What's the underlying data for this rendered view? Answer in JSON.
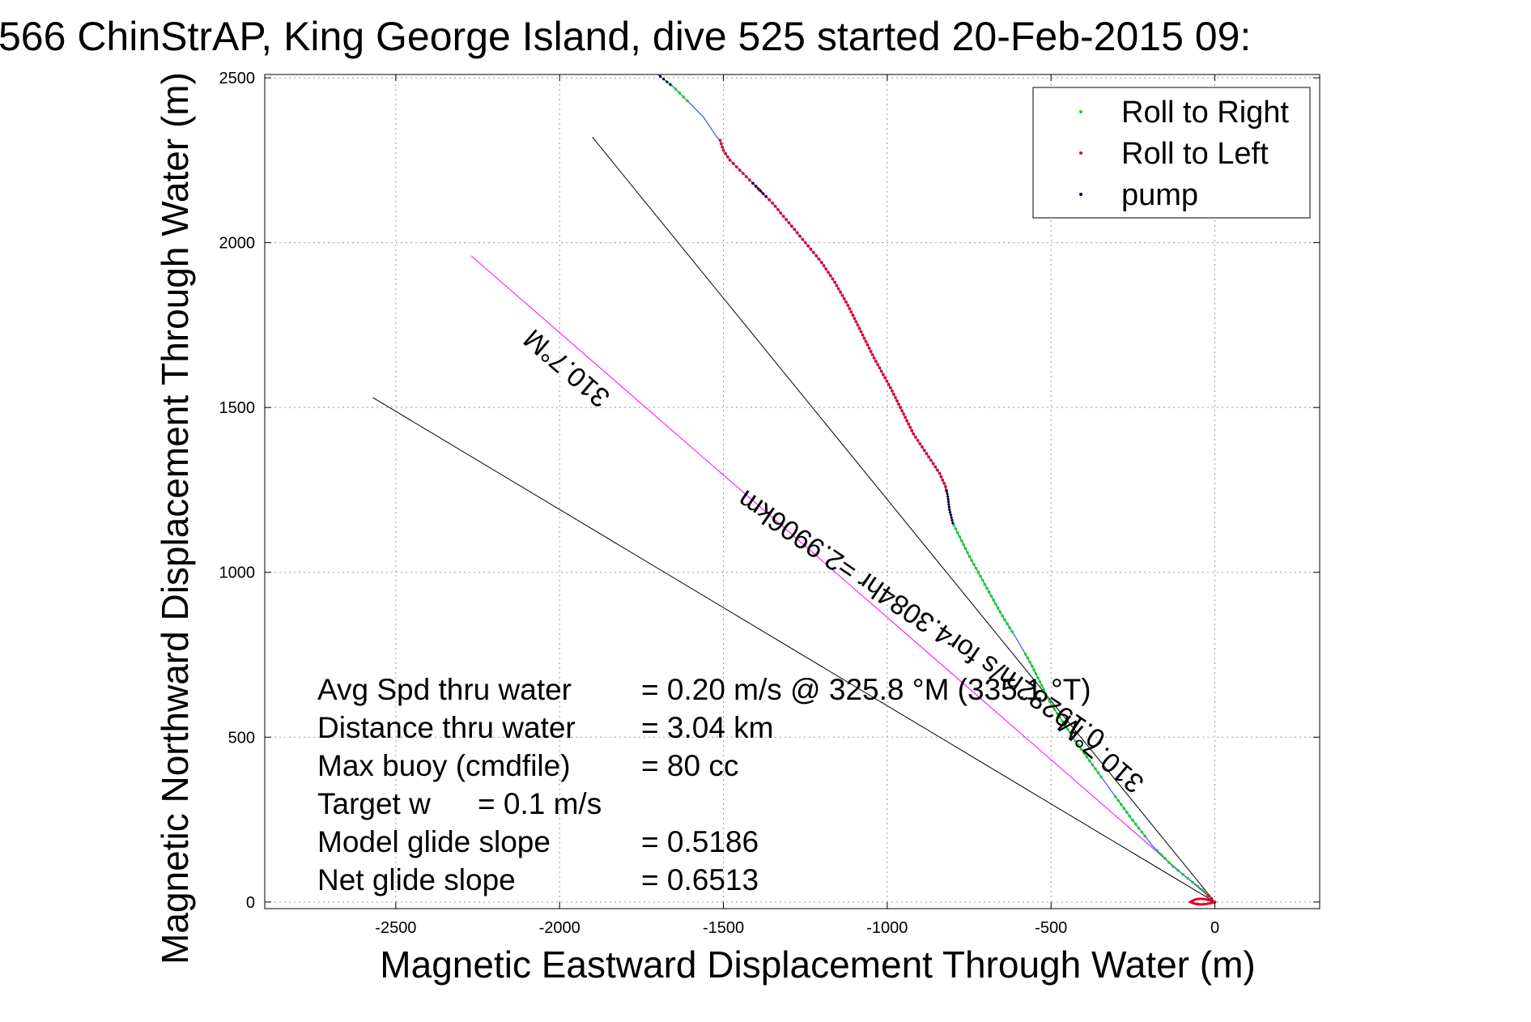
{
  "chart_data": {
    "type": "line",
    "title": "566 ChinStrAP, King George Island, dive 525 started 20-Feb-2015 09:",
    "xlabel": "Magnetic Eastward Displacement Through Water (m)",
    "ylabel": "Magnetic Northward Displacement Through Water (m)",
    "xlim": [
      -2900,
      320
    ],
    "ylim": [
      -20,
      2510
    ],
    "xticks": [
      -2500,
      -2000,
      -1500,
      -1000,
      -500,
      0
    ],
    "yticks": [
      0,
      500,
      1000,
      1500,
      2000,
      2500
    ],
    "grid": true,
    "legend": {
      "placement": "top-right",
      "entries": [
        {
          "label": "Roll to Right",
          "color": "#00dd00"
        },
        {
          "label": "Roll to Left",
          "color": "#e0002a"
        },
        {
          "label": "pump",
          "color": "#000033"
        }
      ]
    },
    "track": {
      "color": "#3355ff",
      "x": [
        0,
        -30,
        -80,
        -130,
        -190,
        -260,
        -340,
        -420,
        -500,
        -560,
        -600,
        -650,
        -700,
        -750,
        -800,
        -810,
        -815,
        -822,
        -840,
        -880,
        -920,
        -950,
        -990,
        -1040,
        -1080,
        -1120,
        -1160,
        -1200,
        -1250,
        -1300,
        -1350,
        -1400,
        -1440,
        -1480,
        -1500,
        -1510,
        -1520,
        -1560,
        -1600,
        -1650,
        -1700
      ],
      "y": [
        0,
        30,
        70,
        110,
        170,
        260,
        370,
        480,
        600,
        720,
        790,
        870,
        960,
        1050,
        1150,
        1190,
        1230,
        1260,
        1300,
        1360,
        1420,
        1480,
        1560,
        1650,
        1730,
        1810,
        1880,
        1940,
        2000,
        2060,
        2120,
        2170,
        2210,
        2250,
        2280,
        2310,
        2320,
        2380,
        2420,
        2470,
        2510
      ],
      "roll_right_ranges_y": [
        [
          0,
          160
        ],
        [
          200,
          320
        ],
        [
          380,
          760
        ],
        [
          820,
          1150
        ],
        [
          2430,
          2480
        ]
      ],
      "roll_left_ranges_y": [
        [
          1250,
          2310
        ],
        [
          0,
          20
        ]
      ],
      "pump_ranges_y": [
        [
          1150,
          1250
        ],
        [
          2140,
          2180
        ],
        [
          2480,
          2510
        ]
      ]
    },
    "reference_lines": [
      {
        "name": "heading-line",
        "color": "#000000",
        "from": [
          0,
          0
        ],
        "to": [
          -1900,
          2320
        ]
      },
      {
        "name": "target-line",
        "color": "#ff00ff",
        "from": [
          0,
          0
        ],
        "to": [
          -2270,
          1960
        ]
      },
      {
        "name": "current-line",
        "color": "#000000",
        "from": [
          0,
          0
        ],
        "to": [
          -2570,
          1530
        ]
      }
    ],
    "annotations": [
      {
        "text": "310.7°M",
        "x": -1960,
        "y": 1640,
        "angle": 220.7
      },
      {
        "text": "0.19282m/s for4.3084hr =2.9906km",
        "x": -880,
        "y": 880,
        "angle": 214.2
      },
      {
        "text": "310.7°M",
        "x": -330,
        "y": 470,
        "angle": 220.7
      }
    ]
  },
  "stats": {
    "avg_speed_label": "Avg Spd thru water",
    "avg_speed_value": "=  0.20 m/s @  325.8 °M (335.1 °T)",
    "distance_label": "Distance thru water",
    "distance_value": "=  3.04 km",
    "max_buoy_label": "Max buoy (cmdfile)",
    "max_buoy_value": "= 80 cc",
    "target_w_label": "Target w",
    "target_w_value": "= 0.1 m/s",
    "model_glide_label": "Model glide slope",
    "model_glide_value": "= 0.5186",
    "net_glide_label": "Net glide slope",
    "net_glide_value": "= 0.6513"
  }
}
